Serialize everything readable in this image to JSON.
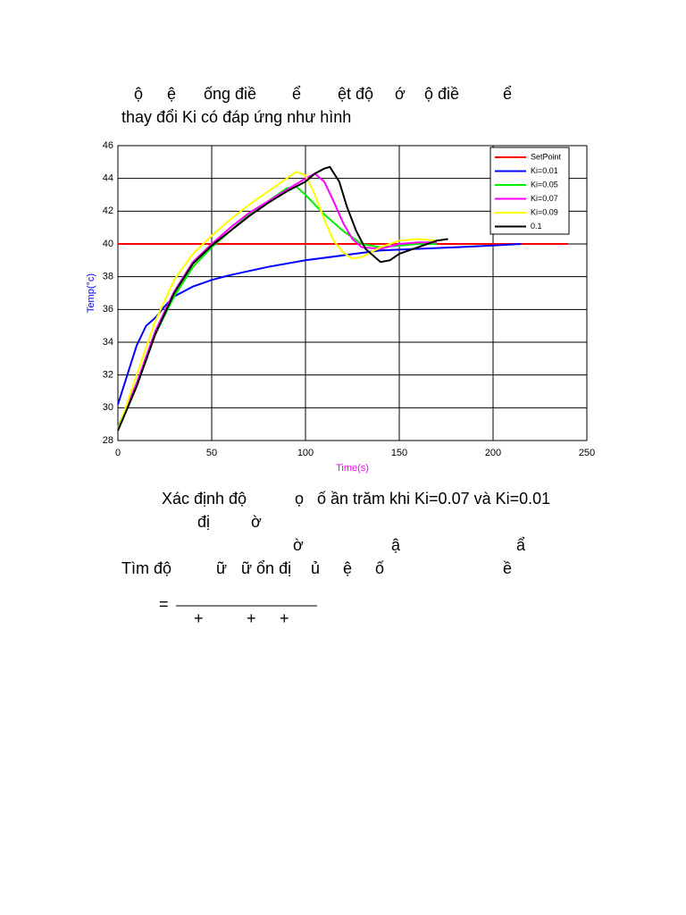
{
  "document": {
    "lines": [
      [
        "ộ",
        "ệ",
        "ống điề",
        "ể",
        "ệt độ",
        "ớ",
        "ộ điề",
        "ể"
      ],
      [
        "thay đổi Ki có đáp ứng như hình"
      ],
      [
        "Xác định độ",
        "ọ",
        "ố",
        "ần trăm khi Ki=0.07 và Ki=0.01"
      ],
      [
        "đị",
        "ờ"
      ],
      [
        "ờ",
        "ậ",
        "ẩ"
      ],
      [
        "Tìm độ",
        "ữ",
        "ữ ổn đị",
        "ủ",
        "ệ",
        "ố",
        "ề"
      ]
    ],
    "equation": {
      "equals": "=",
      "plus": [
        "+",
        "+",
        "+"
      ]
    }
  },
  "chart_data": {
    "type": "line",
    "xlabel": "Time(s)",
    "ylabel": "Temp(°c)",
    "xlim": [
      0,
      250
    ],
    "ylim": [
      28,
      46
    ],
    "xticks": [
      0,
      50,
      100,
      150,
      200,
      250
    ],
    "yticks": [
      28,
      30,
      32,
      34,
      36,
      38,
      40,
      42,
      44,
      46
    ],
    "grid": true,
    "legend": "top-right",
    "series": [
      {
        "name": "SetPoint",
        "color": "#ff0000",
        "x": [
          0,
          240
        ],
        "values": [
          40,
          40
        ]
      },
      {
        "name": "Ki=0.01",
        "color": "#0000ff",
        "x": [
          0,
          5,
          10,
          15,
          20,
          25,
          30,
          40,
          50,
          60,
          80,
          100,
          120,
          140,
          160,
          180,
          200,
          215
        ],
        "values": [
          30.2,
          32,
          33.8,
          35,
          35.5,
          36.2,
          36.8,
          37.4,
          37.8,
          38.1,
          38.6,
          39,
          39.3,
          39.6,
          39.7,
          39.8,
          39.9,
          40
        ]
      },
      {
        "name": "Ki=0.05",
        "color": "#00ee00",
        "x": [
          0,
          10,
          20,
          30,
          40,
          50,
          60,
          70,
          80,
          90,
          95,
          100,
          110,
          120,
          130,
          140,
          150,
          160,
          170
        ],
        "values": [
          28.8,
          31.5,
          34.5,
          36.8,
          38.6,
          39.8,
          40.8,
          41.8,
          42.6,
          43.4,
          43.5,
          43,
          41.8,
          40.8,
          40,
          39.8,
          39.9,
          40,
          40
        ]
      },
      {
        "name": "Ki=0.07",
        "color": "#ff00ff",
        "x": [
          0,
          10,
          20,
          30,
          40,
          50,
          60,
          70,
          80,
          90,
          100,
          105,
          110,
          115,
          120,
          125,
          130,
          140,
          150,
          160,
          170
        ],
        "values": [
          28.7,
          31.5,
          34.7,
          37.1,
          38.9,
          40,
          41,
          41.9,
          42.6,
          43.3,
          44,
          44.3,
          43.8,
          42.6,
          41.3,
          40.3,
          39.8,
          39.7,
          40,
          40.1,
          40.1
        ]
      },
      {
        "name": "Ki=0.09",
        "color": "#ffff00",
        "x": [
          0,
          10,
          20,
          30,
          40,
          50,
          60,
          70,
          80,
          90,
          95,
          100,
          105,
          110,
          115,
          120,
          125,
          130,
          140,
          150,
          160,
          170
        ],
        "values": [
          28.6,
          32,
          35.3,
          37.8,
          39.4,
          40.5,
          41.5,
          42.4,
          43.2,
          44,
          44.4,
          44.2,
          43,
          41.5,
          40.2,
          39.5,
          39.1,
          39.2,
          39.8,
          40.2,
          40.3,
          40.2
        ]
      },
      {
        "name": "0.1",
        "color": "#000000",
        "x": [
          0,
          10,
          20,
          30,
          40,
          50,
          60,
          70,
          80,
          90,
          100,
          105,
          110,
          113,
          118,
          122,
          127,
          132,
          137,
          140,
          145,
          150,
          160,
          170,
          176
        ],
        "values": [
          28.6,
          31.3,
          34.5,
          37,
          38.8,
          39.9,
          40.8,
          41.7,
          42.5,
          43.2,
          43.8,
          44.3,
          44.6,
          44.7,
          43.8,
          42.3,
          40.8,
          39.7,
          39.2,
          38.9,
          39,
          39.4,
          39.8,
          40.2,
          40.3
        ]
      }
    ]
  }
}
